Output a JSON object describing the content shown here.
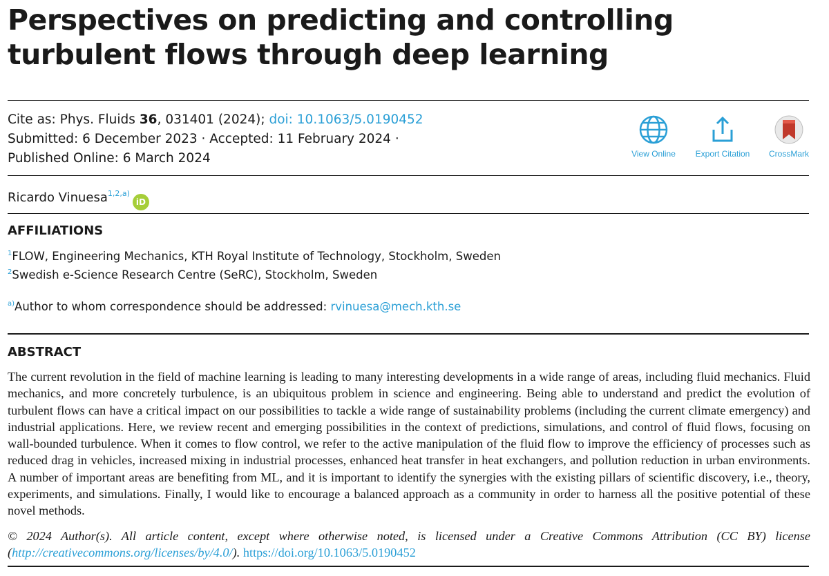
{
  "title_line1": "Perspectives on predicting and controlling",
  "title_line2": "turbulent flows through deep learning",
  "citation": {
    "prefix": "Cite as: Phys. Fluids ",
    "volume": "36",
    "rest": ", 031401 (2024); ",
    "doi_text": "doi: 10.1063/5.0190452",
    "dates_line1": "Submitted: 6 December 2023 · Accepted: 11 February 2024 ·",
    "dates_line2": "Published Online: 6 March 2024"
  },
  "tools": {
    "view_online": "View Online",
    "export_citation": "Export Citation",
    "crossmark": "CrossMark"
  },
  "author": {
    "name": "Ricardo Vinuesa",
    "affil_marks": "1,2,a)",
    "orcid_label": "iD"
  },
  "affiliations": {
    "heading": "AFFILIATIONS",
    "items": [
      {
        "mark": "1",
        "text": "FLOW, Engineering Mechanics, KTH Royal Institute of Technology, Stockholm, Sweden"
      },
      {
        "mark": "2",
        "text": "Swedish e-Science Research Centre (SeRC), Stockholm, Sweden"
      }
    ],
    "correspondence_mark": "a)",
    "correspondence_text": "Author to whom correspondence should be addressed: ",
    "email": "rvinuesa@mech.kth.se"
  },
  "abstract": {
    "heading": "ABSTRACT",
    "text": "The current revolution in the field of machine learning is leading to many interesting developments in a wide range of areas, including fluid mechanics. Fluid mechanics, and more concretely turbulence, is an ubiquitous problem in science and engineering. Being able to understand and predict the evolution of turbulent flows can have a critical impact on our possibilities to tackle a wide range of sustainability problems (including the current climate emergency) and industrial applications. Here, we review recent and emerging possibilities in the context of predictions, simulations, and control of fluid flows, focusing on wall-bounded turbulence. When it comes to flow control, we refer to the active manipulation of the fluid flow to improve the efficiency of processes such as reduced drag in vehicles, increased mixing in industrial processes, enhanced heat transfer in heat exchangers, and pollution reduction in urban environments. A number of important areas are benefiting from ML, and it is important to identify the synergies with the existing pillars of scientific discovery, i.e., theory, experiments, and simulations. Finally, I would like to encourage a balanced approach as a community in order to harness all the positive potential of these novel methods."
  },
  "license": {
    "text": "© 2024  Author(s). All article content, except where otherwise noted, is licensed under a Creative Commons Attribution (CC BY) license (",
    "cc_url": "http://creativecommons.org/licenses/by/4.0/",
    "after": "). ",
    "doi_url": "https://doi.org/10.1063/5.0190452"
  },
  "colors": {
    "link": "#2a9fd6",
    "orcid": "#a6ce39",
    "crossmark_red": "#c0392b"
  }
}
